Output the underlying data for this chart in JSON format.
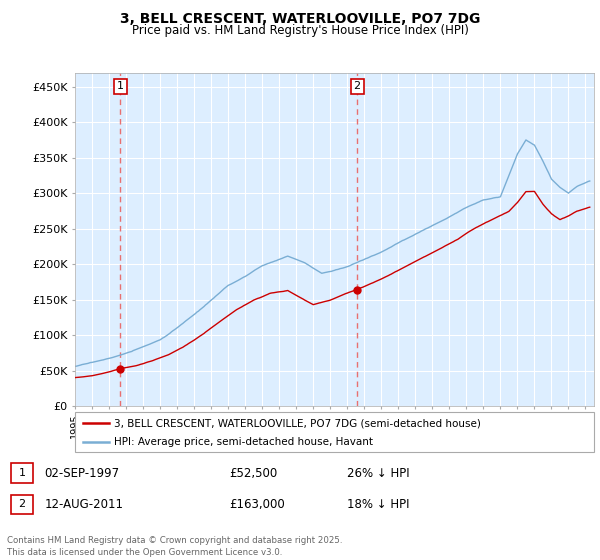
{
  "title": "3, BELL CRESCENT, WATERLOOVILLE, PO7 7DG",
  "subtitle": "Price paid vs. HM Land Registry's House Price Index (HPI)",
  "sale1_price": 52500,
  "sale2_price": 163000,
  "legend_property": "3, BELL CRESCENT, WATERLOOVILLE, PO7 7DG (semi-detached house)",
  "legend_hpi": "HPI: Average price, semi-detached house, Havant",
  "table_row1": [
    "1",
    "02-SEP-1997",
    "£52,500",
    "26% ↓ HPI"
  ],
  "table_row2": [
    "2",
    "12-AUG-2011",
    "£163,000",
    "18% ↓ HPI"
  ],
  "footnote": "Contains HM Land Registry data © Crown copyright and database right 2025.\nThis data is licensed under the Open Government Licence v3.0.",
  "hpi_color": "#7aaed4",
  "price_color": "#cc0000",
  "vline_color": "#e87070",
  "bg_color": "#ddeeff",
  "ylim_min": 0,
  "ylim_max": 470000,
  "yticks": [
    0,
    50000,
    100000,
    150000,
    200000,
    250000,
    300000,
    350000,
    400000,
    450000
  ],
  "ylabels": [
    "£0",
    "£50K",
    "£100K",
    "£150K",
    "£200K",
    "£250K",
    "£300K",
    "£350K",
    "£400K",
    "£450K"
  ],
  "sale1_t": 1997.667,
  "sale2_t": 2011.583,
  "hpi_knots_t": [
    1995.0,
    1996.0,
    1997.0,
    1998.0,
    1999.0,
    2000.0,
    2001.0,
    2002.0,
    2003.0,
    2004.0,
    2005.0,
    2006.0,
    2007.5,
    2008.5,
    2009.5,
    2010.0,
    2011.0,
    2012.0,
    2013.0,
    2014.0,
    2015.0,
    2016.0,
    2017.0,
    2018.0,
    2019.0,
    2020.0,
    2021.0,
    2021.5,
    2022.0,
    2022.5,
    2023.0,
    2023.5,
    2024.0,
    2024.5,
    2025.25
  ],
  "hpi_knots_v": [
    56000,
    61000,
    67000,
    74000,
    83000,
    93000,
    110000,
    128000,
    148000,
    168000,
    181000,
    196000,
    210000,
    200000,
    185000,
    188000,
    195000,
    205000,
    215000,
    228000,
    240000,
    252000,
    265000,
    278000,
    290000,
    295000,
    355000,
    375000,
    368000,
    345000,
    320000,
    308000,
    300000,
    310000,
    318000
  ],
  "price_knots_t": [
    1995.0,
    1996.0,
    1997.0,
    1997.667,
    1998.5,
    1999.5,
    2000.5,
    2001.5,
    2002.5,
    2003.5,
    2004.5,
    2005.5,
    2006.5,
    2007.5,
    2008.0,
    2009.0,
    2010.0,
    2011.583,
    2012.5,
    2013.5,
    2014.5,
    2015.5,
    2016.5,
    2017.5,
    2018.5,
    2019.5,
    2020.5,
    2021.0,
    2021.5,
    2022.0,
    2022.5,
    2023.0,
    2023.5,
    2024.0,
    2024.5,
    2025.25
  ],
  "price_knots_v": [
    40000,
    43000,
    48000,
    52500,
    56000,
    63000,
    72000,
    85000,
    100000,
    118000,
    135000,
    148000,
    158000,
    162000,
    155000,
    142000,
    148000,
    163000,
    172000,
    183000,
    196000,
    208000,
    220000,
    233000,
    248000,
    260000,
    272000,
    285000,
    300000,
    300000,
    282000,
    268000,
    260000,
    265000,
    272000,
    278000
  ]
}
